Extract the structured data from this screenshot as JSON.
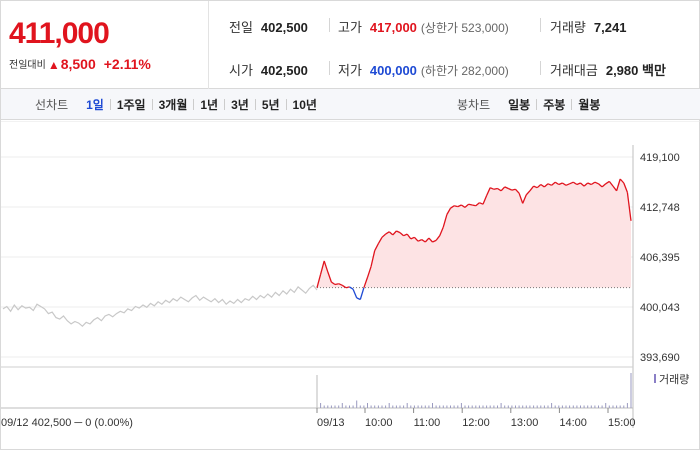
{
  "summary": {
    "current_price": "411,000",
    "change_label": "전일대비",
    "change_arrow": "▲",
    "change_value": "8,500",
    "change_rate": "+2.11%",
    "stats": {
      "prev_close": {
        "label": "전일",
        "value": "402,500"
      },
      "open": {
        "label": "시가",
        "value": "402,500"
      },
      "high": {
        "label": "고가",
        "value": "417,000",
        "sub": "(상한가 523,000)"
      },
      "low": {
        "label": "저가",
        "value": "400,000",
        "sub": "(하한가 282,000)"
      },
      "volume": {
        "label": "거래량",
        "value": "7,241"
      },
      "amount": {
        "label": "거래대금",
        "value": "2,980 백만"
      }
    }
  },
  "tabs": {
    "line_label": "선차트",
    "line_tabs": [
      "1일",
      "1주일",
      "3개월",
      "1년",
      "3년",
      "5년",
      "10년"
    ],
    "line_active": "1일",
    "candle_label": "봉차트",
    "candle_tabs": [
      "일봉",
      "주봉",
      "월봉"
    ]
  },
  "colors": {
    "up": "#e0141e",
    "down": "#1e4ad4",
    "prev_day_line": "#c8c8c8",
    "fill": "#fde3e4"
  },
  "chart_data": {
    "type": "line",
    "y_ticks": [
      "419,100",
      "412,748",
      "406,395",
      "400,043",
      "393,690"
    ],
    "ylim": [
      393690,
      419100
    ],
    "base_price": 402500,
    "prev_day_label": "09/12  402,500 ─ 0 (0.00%)",
    "today_label": "09/13",
    "time_ticks": [
      "10:00",
      "11:00",
      "12:00",
      "13:00",
      "14:00",
      "15:00"
    ],
    "volume_legend": "거래량",
    "prev_day_series": [
      399800,
      400100,
      399500,
      400300,
      399700,
      400200,
      399900,
      400000,
      399600,
      400400,
      400100,
      399800,
      399200,
      399400,
      398700,
      398500,
      398900,
      398300,
      397900,
      398200,
      398000,
      397600,
      398100,
      397900,
      398400,
      398700,
      398300,
      398900,
      399100,
      398800,
      399200,
      399500,
      399300,
      399800,
      399600,
      400100,
      399900,
      400300,
      400000,
      400500,
      400200,
      400700,
      400400,
      400900,
      400600,
      401100,
      400800,
      401300,
      401000,
      400700,
      401200,
      401500,
      400900,
      401300,
      401000,
      400700,
      401100,
      400600,
      401000,
      400400,
      400800,
      400500,
      401000,
      400600,
      401100,
      400900,
      401400,
      401000,
      401500,
      401200,
      401700,
      401300,
      401900,
      401500,
      402100,
      401700,
      402300,
      401900,
      402600,
      402200,
      401800,
      402400,
      402800,
      402200
    ],
    "today_series": [
      402500,
      404200,
      405900,
      404500,
      403200,
      402900,
      403000,
      402800,
      402500,
      402600,
      402300,
      401200,
      401000,
      402500,
      403800,
      405200,
      407200,
      408100,
      408900,
      409300,
      409600,
      409200,
      409700,
      409500,
      409100,
      409300,
      408700,
      408900,
      408400,
      408600,
      408300,
      408800,
      408300,
      408500,
      409100,
      410200,
      411800,
      412600,
      412900,
      412800,
      413000,
      412700,
      413100,
      413000,
      412900,
      413300,
      413100,
      414200,
      415200,
      415000,
      415100,
      414800,
      415300,
      415100,
      414900,
      415000,
      414500,
      413200,
      414300,
      414800,
      415400,
      415200,
      415600,
      415300,
      415700,
      415500,
      415900,
      415600,
      415800,
      415500,
      415700,
      415900,
      415600,
      415800,
      415400,
      415800,
      415600,
      415900,
      415700,
      415300,
      415700,
      416000,
      415400,
      414800,
      416300,
      415800,
      414600,
      411000
    ],
    "volume_series": [
      6,
      2,
      1,
      1,
      1,
      1,
      1,
      2,
      1,
      1,
      1,
      3,
      1,
      1,
      2,
      1,
      1,
      1,
      1,
      1,
      2,
      1,
      1,
      1,
      1,
      2,
      1,
      1,
      1,
      1,
      1,
      1,
      2,
      1,
      1,
      1,
      1,
      1,
      1,
      1,
      2,
      1,
      1,
      1,
      1,
      1,
      1,
      1,
      1,
      1,
      1,
      2,
      1,
      1,
      1,
      1,
      1,
      1,
      1,
      1,
      1,
      1,
      1,
      1,
      1,
      2,
      1,
      1,
      1,
      1,
      1,
      1,
      1,
      1,
      1,
      1,
      1,
      1,
      1,
      1,
      2,
      1,
      1,
      1,
      1,
      1,
      2,
      14
    ]
  }
}
